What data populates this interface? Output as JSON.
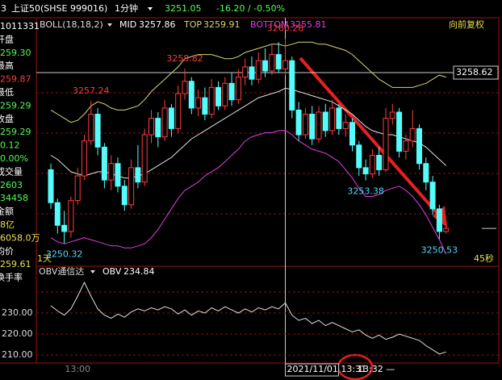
{
  "header": {
    "code": "3",
    "name": "上证50(SHSE 999016)",
    "period": "1分钟",
    "change": "-16.20 / -0.50%",
    "indicator": "BOLL(18,18,2)",
    "adjust": "向前复权"
  },
  "info_panel": [
    {
      "text": "1011331",
      "color": "#ffffff"
    },
    {
      "text": "开盘",
      "color": "#ffffff"
    },
    {
      "text": "259.30",
      "color": "#54fc54"
    },
    {
      "text": "最高",
      "color": "#ffffff"
    },
    {
      "text": "259.87",
      "color": "#ff3c3c"
    },
    {
      "text": "最低",
      "color": "#ffffff"
    },
    {
      "text": "259.29",
      "color": "#54fc54"
    },
    {
      "text": "收盘",
      "color": "#ffffff"
    },
    {
      "text": "259.29",
      "color": "#54fc54"
    },
    {
      "text": "0.12",
      "color": "#54fc54"
    },
    {
      "text": "0.00%",
      "color": "#54fc54"
    },
    {
      "text": "成交量",
      "color": "#ffffff"
    },
    {
      "text": "2603",
      "color": "#54fc54"
    },
    {
      "text": "34458",
      "color": "#54fc54"
    },
    {
      "text": "金额",
      "color": "#ffffff"
    },
    {
      "text": "8亿",
      "color": "#e8e050"
    },
    {
      "text": "6058.0万",
      "color": "#e8e050"
    },
    {
      "text": "均价",
      "color": "#ffffff"
    },
    {
      "text": "259.61",
      "color": "#e8e050"
    },
    {
      "text": "换手率",
      "color": "#ffffff"
    }
  ],
  "chart_data": [
    {
      "type": "candlestick",
      "up_color": "#ff3c3c",
      "down_color": "#54fcfc",
      "categories": [
        null,
        null,
        null,
        null,
        "13:00",
        null,
        null,
        null,
        null,
        null,
        null,
        null,
        null,
        null,
        null,
        null,
        null,
        null,
        null,
        null,
        null,
        null,
        null,
        null,
        null,
        null,
        null,
        null,
        null,
        null,
        null,
        null,
        null,
        null,
        null,
        null,
        null,
        null,
        null,
        null,
        null,
        null,
        null,
        null,
        null,
        null,
        null,
        null,
        null,
        null,
        null,
        null,
        null,
        null,
        null,
        null,
        null,
        null,
        null,
        null
      ],
      "open": [
        3253.9,
        3252.3,
        3251.2,
        3250.9,
        3252.4,
        3253.6,
        3255.3,
        3256.6,
        3255.0,
        3253.4,
        3254.2,
        3253.1,
        3252.2,
        3254.0,
        3253.3,
        3255.6,
        3256.4,
        3255.5,
        3256.9,
        3255.9,
        3257.6,
        3258.2,
        3256.9,
        3257.4,
        3256.6,
        3257.9,
        3257.0,
        3258.1,
        3257.3,
        3258.4,
        3258.9,
        3258.3,
        3259.2,
        3258.7,
        3259.5,
        3258.8,
        3259.2,
        3256.8,
        3255.6,
        3256.6,
        3255.4,
        3256.7,
        3255.8,
        3256.9,
        3255.9,
        3256.2,
        3255.1,
        3254.0,
        3253.7,
        3254.6,
        3253.9,
        3256.4,
        3256.7,
        3254.8,
        3255.3,
        3255.9,
        3254.2,
        3253.3,
        3252.0,
        3250.9
      ],
      "close": [
        3252.3,
        3251.2,
        3250.9,
        3252.4,
        3253.6,
        3255.3,
        3256.6,
        3255.0,
        3253.4,
        3254.2,
        3253.1,
        3252.2,
        3254.0,
        3253.3,
        3255.6,
        3256.4,
        3255.5,
        3256.9,
        3255.9,
        3257.6,
        3258.2,
        3256.9,
        3257.4,
        3256.6,
        3257.9,
        3257.0,
        3258.1,
        3257.3,
        3258.4,
        3258.9,
        3258.3,
        3259.2,
        3258.7,
        3259.5,
        3258.8,
        3259.2,
        3256.8,
        3255.6,
        3256.6,
        3255.4,
        3256.7,
        3255.8,
        3256.9,
        3255.9,
        3256.2,
        3255.1,
        3254.0,
        3253.7,
        3254.6,
        3253.9,
        3256.4,
        3256.7,
        3254.8,
        3255.3,
        3255.9,
        3254.2,
        3253.3,
        3252.0,
        3250.9,
        3251.05
      ],
      "high": [
        3254.2,
        3252.5,
        3251.9,
        3252.6,
        3254.0,
        3255.6,
        3257.24,
        3256.9,
        3255.2,
        3254.6,
        3254.5,
        3253.4,
        3254.4,
        3255.1,
        3255.9,
        3256.8,
        3256.7,
        3257.3,
        3257.1,
        3258.0,
        3258.82,
        3258.4,
        3257.8,
        3257.9,
        3258.3,
        3258.2,
        3258.4,
        3258.6,
        3258.8,
        3259.3,
        3259.4,
        3259.6,
        3259.8,
        3260.0,
        3260.1,
        3260.28,
        3259.4,
        3257.2,
        3256.9,
        3257.0,
        3257.0,
        3257.1,
        3257.3,
        3257.1,
        3256.6,
        3256.4,
        3255.3,
        3254.4,
        3254.9,
        3255.0,
        3256.9,
        3257.1,
        3256.9,
        3255.6,
        3256.8,
        3256.1,
        3254.5,
        3253.6,
        3252.2,
        3251.2
      ],
      "low": [
        3252.0,
        3250.8,
        3250.32,
        3250.6,
        3252.2,
        3253.4,
        3255.1,
        3254.6,
        3253.0,
        3252.9,
        3252.8,
        3251.9,
        3252.0,
        3253.0,
        3253.1,
        3255.2,
        3255.0,
        3255.3,
        3255.5,
        3255.7,
        3257.3,
        3256.6,
        3256.5,
        3256.3,
        3256.4,
        3256.8,
        3256.8,
        3257.0,
        3257.1,
        3258.0,
        3258.0,
        3258.1,
        3258.4,
        3258.5,
        3258.6,
        3258.5,
        3256.4,
        3255.3,
        3255.4,
        3255.1,
        3255.2,
        3255.5,
        3255.6,
        3255.6,
        3255.5,
        3254.8,
        3253.6,
        3253.38,
        3253.5,
        3253.6,
        3253.8,
        3256.1,
        3254.5,
        3254.4,
        3255.0,
        3253.9,
        3252.9,
        3251.7,
        3250.53,
        3250.8
      ],
      "series": [
        {
          "name": "MID",
          "color": "#e0e0e0",
          "values": [
            3254.6,
            3254.4,
            3254.1,
            3253.8,
            3253.7,
            3253.6,
            3253.7,
            3253.8,
            3253.8,
            3253.7,
            3253.6,
            3253.5,
            3253.5,
            3253.6,
            3253.7,
            3253.9,
            3254.1,
            3254.3,
            3254.5,
            3254.8,
            3255.1,
            3255.4,
            3255.6,
            3255.8,
            3256.0,
            3256.2,
            3256.4,
            3256.6,
            3256.8,
            3257.0,
            3257.2,
            3257.4,
            3257.5,
            3257.6,
            3257.7,
            3257.86,
            3257.8,
            3257.7,
            3257.6,
            3257.5,
            3257.4,
            3257.3,
            3257.2,
            3257.0,
            3256.8,
            3256.6,
            3256.3,
            3256.0,
            3255.8,
            3255.7,
            3255.6,
            3255.6,
            3255.5,
            3255.4,
            3255.3,
            3255.2,
            3255.0,
            3254.7,
            3254.4,
            3254.1
          ]
        },
        {
          "name": "TOP",
          "color": "#d8d870",
          "values": [
            3256.8,
            3256.6,
            3256.4,
            3256.2,
            3256.3,
            3256.6,
            3257.0,
            3257.2,
            3257.1,
            3256.9,
            3256.8,
            3256.8,
            3256.9,
            3257.0,
            3257.3,
            3257.7,
            3258.0,
            3258.3,
            3258.6,
            3258.9,
            3259.3,
            3259.4,
            3259.5,
            3259.5,
            3259.5,
            3259.4,
            3259.3,
            3259.3,
            3259.4,
            3259.6,
            3259.7,
            3259.8,
            3259.9,
            3260.0,
            3260.0,
            3259.91,
            3260.0,
            3260.1,
            3260.1,
            3260.1,
            3260.0,
            3260.0,
            3259.9,
            3259.8,
            3259.7,
            3259.5,
            3259.2,
            3258.9,
            3258.6,
            3258.3,
            3258.1,
            3257.9,
            3257.9,
            3257.9,
            3257.9,
            3258.0,
            3258.1,
            3258.3,
            3258.5,
            3258.4
          ]
        },
        {
          "name": "BOTTOM",
          "color": "#e040e0",
          "values": [
            3250.6,
            3250.4,
            3250.3,
            3250.4,
            3250.5,
            3250.6,
            3250.5,
            3250.4,
            3250.3,
            3250.2,
            3250.2,
            3250.1,
            3250.1,
            3250.2,
            3250.3,
            3250.6,
            3251.0,
            3251.5,
            3252.0,
            3252.5,
            3252.9,
            3253.1,
            3253.3,
            3253.6,
            3253.8,
            3254.0,
            3254.3,
            3254.6,
            3254.9,
            3255.3,
            3255.5,
            3255.6,
            3255.7,
            3255.7,
            3255.8,
            3255.81,
            3255.6,
            3255.3,
            3255.1,
            3254.9,
            3254.8,
            3254.7,
            3254.5,
            3254.3,
            3253.9,
            3253.5,
            3253.0,
            3252.6,
            3252.6,
            3252.7,
            3252.9,
            3253.0,
            3253.1,
            3252.9,
            3252.6,
            3252.2,
            3251.7,
            3251.1,
            3250.5,
            3249.8
          ]
        }
      ],
      "ylim": [
        3249.21,
        3260.66
      ],
      "crosshair": {
        "price": 3258.62,
        "time": "2021/11/01 13:31"
      },
      "left_label": "1天",
      "right_label": "45秒",
      "next_time": "13:32 —"
    },
    {
      "type": "line",
      "title": "OBV通信达",
      "name": "OBV",
      "color": "#e0e0e0",
      "values": [
        233.5,
        231.0,
        229.0,
        232.0,
        238.0,
        244.6,
        238.0,
        232.0,
        229.0,
        227.5,
        229.5,
        228.0,
        230.5,
        232.0,
        231.0,
        232.5,
        231.5,
        233.0,
        232.0,
        229.5,
        231.5,
        229.0,
        231.0,
        230.0,
        232.5,
        231.0,
        233.0,
        231.5,
        230.0,
        232.0,
        230.5,
        232.5,
        231.5,
        233.0,
        232.0,
        234.84,
        229.0,
        226.5,
        227.5,
        225.0,
        226.5,
        224.0,
        225.5,
        224.0,
        222.5,
        221.0,
        222.0,
        219.5,
        218.0,
        219.5,
        217.5,
        218.5,
        220.0,
        219.0,
        218.0,
        217.0,
        214.5,
        212.5,
        210.5,
        211.5
      ],
      "ylim": [
        206.2,
        246.5
      ],
      "yticks": [
        {
          "value": 210,
          "label": "210.00"
        },
        {
          "value": 220,
          "label": "220.00"
        },
        {
          "value": 230,
          "label": "230.00"
        }
      ]
    }
  ]
}
